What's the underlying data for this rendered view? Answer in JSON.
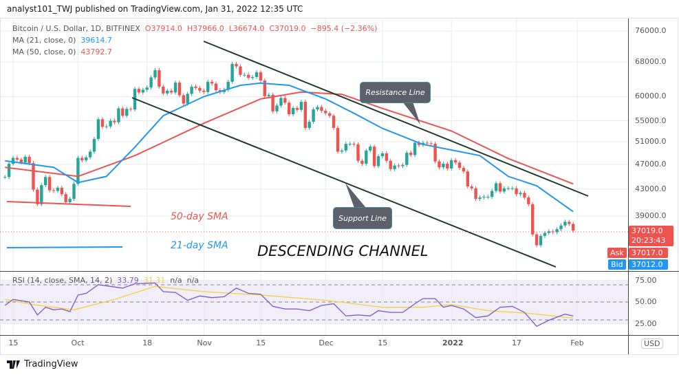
{
  "header": {
    "published": "analyst101_TWJ published on TradingView.com, Jan 31, 2022 12:35 UTC"
  },
  "legend": {
    "symbol": "Bitcoin / U.S. Dollar, 1D, BITFINEX",
    "open": "O37914.0",
    "high": "H37966.0",
    "low": "L36674.0",
    "close": "C37019.0",
    "change": "−895.4 (−2.36%)",
    "ma21_label": "MA (21, close, 0)",
    "ma21_value": "39614.7",
    "ma50_label": "MA (50, close, 0)",
    "ma50_value": "43792.7",
    "rsi_label": "RSI (14, close, SMA, 14, 2)",
    "rsi_value": "33.79",
    "rsi_sma_value": "31.31",
    "rsi_na1": "n/a",
    "rsi_na2": "n/a"
  },
  "price_axis": {
    "currency": "USD",
    "ticks": [
      "76000.0",
      "68000.0",
      "60000.0",
      "55000.0",
      "51000.0",
      "47000.0",
      "43000.0",
      "39000.0"
    ]
  },
  "rsi_axis": {
    "ticks": [
      "75.00",
      "50.00",
      "25.00"
    ]
  },
  "price_tags": {
    "last": "37019.0",
    "countdown": "20:23:43",
    "ask_label": "Ask",
    "ask": "37017.0",
    "bid_label": "Bid",
    "bid": "37012.0"
  },
  "time_axis": {
    "ticks": [
      "15",
      "Oct",
      "18",
      "Nov",
      "15",
      "Dec",
      "15",
      "2022",
      "17",
      "Feb"
    ]
  },
  "annotations": {
    "resistance": "Resistance Line",
    "support": "Support Line",
    "sma50": "50-day SMA",
    "sma21": "21-day SMA",
    "channel": "DESCENDING CHANNEL"
  },
  "footer": {
    "brand": "TradingView"
  },
  "colors": {
    "up": "#26a69a",
    "down": "#ef5350",
    "ma21": "#2196f3",
    "ma50": "#ef5350",
    "rsi": "#7e57c2",
    "rsi_sma": "#f4d03f",
    "trendline": "#1e3a2f"
  },
  "chart_data": [
    {
      "type": "candlestick",
      "title": "Bitcoin / U.S. Dollar, 1D, BITFINEX",
      "y_scale": "log",
      "ylim": [
        33000,
        78000
      ],
      "grid": true,
      "x_start": "2021-09-13",
      "x_end": "2022-01-31",
      "first_open": 44900,
      "last_open": 37914,
      "closes": [
        44900,
        47100,
        48100,
        47800,
        47300,
        48300,
        47200,
        42900,
        40700,
        43600,
        44900,
        42800,
        42700,
        43200,
        42200,
        41000,
        41500,
        43800,
        48100,
        47700,
        48200,
        49200,
        51500,
        55300,
        53800,
        53900,
        55000,
        54700,
        57500,
        56000,
        57400,
        57300,
        61700,
        60900,
        61500,
        62000,
        64300,
        66000,
        62200,
        60700,
        61300,
        60900,
        63100,
        60300,
        58500,
        60600,
        62200,
        61900,
        61300,
        61000,
        63300,
        62900,
        61400,
        61000,
        61500,
        63300,
        67500,
        66900,
        64900,
        64900,
        64200,
        64400,
        65500,
        63600,
        60100,
        60400,
        56900,
        58100,
        59700,
        58700,
        56300,
        57600,
        57200,
        58900,
        53600,
        54800,
        57300,
        57800,
        57000,
        56500,
        56000,
        53600,
        49200,
        49400,
        50600,
        50600,
        50500,
        47600,
        47100,
        49400,
        50100,
        46700,
        48400,
        48900,
        47600,
        46200,
        46800,
        46700,
        46900,
        49000,
        48600,
        50800,
        50400,
        50800,
        50700,
        50600,
        47500,
        46500,
        47100,
        46300,
        47700,
        47300,
        46400,
        45800,
        43400,
        43100,
        41500,
        41700,
        41800,
        41800,
        42700,
        43900,
        42600,
        43100,
        43100,
        43100,
        42200,
        42400,
        41700,
        40700,
        36500,
        35100,
        36300,
        36700,
        36900,
        36800,
        37200,
        37700,
        38200,
        37900,
        37019
      ],
      "series": [
        {
          "name": "MA (21, close, 0)",
          "points": [
            [
              "2021-09-13",
              47600
            ],
            [
              "2021-09-25",
              46500
            ],
            [
              "2021-10-01",
              44000
            ],
            [
              "2021-10-08",
              45000
            ],
            [
              "2021-10-15",
              50000
            ],
            [
              "2021-10-22",
              56000
            ],
            [
              "2021-11-01",
              60000
            ],
            [
              "2021-11-10",
              62500
            ],
            [
              "2021-11-15",
              63000
            ],
            [
              "2021-11-22",
              62500
            ],
            [
              "2021-12-01",
              59500
            ],
            [
              "2021-12-08",
              56500
            ],
            [
              "2021-12-15",
              53500
            ],
            [
              "2021-12-25",
              50500
            ],
            [
              "2022-01-01",
              49500
            ],
            [
              "2022-01-08",
              48500
            ],
            [
              "2022-01-15",
              45000
            ],
            [
              "2022-01-22",
              43500
            ],
            [
              "2022-01-31",
              39614.7
            ]
          ]
        },
        {
          "name": "MA (50, close, 0)",
          "points": [
            [
              "2021-09-13",
              46500
            ],
            [
              "2021-10-01",
              45000
            ],
            [
              "2021-10-15",
              48500
            ],
            [
              "2021-11-01",
              54500
            ],
            [
              "2021-11-15",
              59500
            ],
            [
              "2021-11-25",
              61000
            ],
            [
              "2021-12-05",
              60500
            ],
            [
              "2021-12-15",
              57500
            ],
            [
              "2022-01-01",
              53000
            ],
            [
              "2022-01-15",
              48000
            ],
            [
              "2022-01-31",
              43792.7
            ]
          ]
        }
      ]
    },
    {
      "type": "line",
      "title": "RSI (14, close, SMA, 14, 2)",
      "ylim": [
        0,
        100
      ],
      "bands": [
        30,
        50,
        70
      ],
      "series": [
        {
          "name": "RSI",
          "points": [
            [
              "2021-09-13",
              46
            ],
            [
              "2021-09-15",
              53
            ],
            [
              "2021-09-19",
              50
            ],
            [
              "2021-09-21",
              35
            ],
            [
              "2021-09-23",
              44
            ],
            [
              "2021-09-25",
              41
            ],
            [
              "2021-09-27",
              42
            ],
            [
              "2021-09-29",
              39
            ],
            [
              "2021-10-01",
              58
            ],
            [
              "2021-10-03",
              60
            ],
            [
              "2021-10-06",
              70
            ],
            [
              "2021-10-09",
              68
            ],
            [
              "2021-10-12",
              66
            ],
            [
              "2021-10-15",
              71
            ],
            [
              "2021-10-20",
              72
            ],
            [
              "2021-10-22",
              62
            ],
            [
              "2021-10-25",
              61
            ],
            [
              "2021-10-28",
              52
            ],
            [
              "2021-10-31",
              57
            ],
            [
              "2021-11-03",
              55
            ],
            [
              "2021-11-06",
              56
            ],
            [
              "2021-11-09",
              66
            ],
            [
              "2021-11-12",
              60
            ],
            [
              "2021-11-15",
              59
            ],
            [
              "2021-11-18",
              45
            ],
            [
              "2021-11-21",
              42
            ],
            [
              "2021-11-24",
              42
            ],
            [
              "2021-11-27",
              40
            ],
            [
              "2021-11-30",
              46
            ],
            [
              "2021-12-03",
              48
            ],
            [
              "2021-12-06",
              34
            ],
            [
              "2021-12-09",
              35
            ],
            [
              "2021-12-12",
              34
            ],
            [
              "2021-12-14",
              40
            ],
            [
              "2021-12-17",
              38
            ],
            [
              "2021-12-20",
              38
            ],
            [
              "2021-12-23",
              48
            ],
            [
              "2021-12-25",
              54
            ],
            [
              "2021-12-28",
              54
            ],
            [
              "2021-12-30",
              44
            ],
            [
              "2022-01-01",
              46
            ],
            [
              "2022-01-04",
              42
            ],
            [
              "2022-01-07",
              32
            ],
            [
              "2022-01-10",
              34
            ],
            [
              "2022-01-13",
              44
            ],
            [
              "2022-01-16",
              45
            ],
            [
              "2022-01-19",
              38
            ],
            [
              "2022-01-22",
              22
            ],
            [
              "2022-01-25",
              29
            ],
            [
              "2022-01-29",
              36
            ],
            [
              "2022-01-31",
              33.79
            ]
          ]
        },
        {
          "name": "RSI SMA",
          "points": [
            [
              "2021-09-13",
              53
            ],
            [
              "2021-09-20",
              47
            ],
            [
              "2021-09-30",
              41
            ],
            [
              "2021-10-10",
              53
            ],
            [
              "2021-10-20",
              68
            ],
            [
              "2021-11-01",
              62
            ],
            [
              "2021-11-15",
              58
            ],
            [
              "2021-12-01",
              52
            ],
            [
              "2021-12-15",
              44
            ],
            [
              "2021-12-25",
              44
            ],
            [
              "2022-01-01",
              47
            ],
            [
              "2022-01-10",
              40
            ],
            [
              "2022-01-20",
              37
            ],
            [
              "2022-01-31",
              31.31
            ]
          ]
        }
      ]
    }
  ]
}
